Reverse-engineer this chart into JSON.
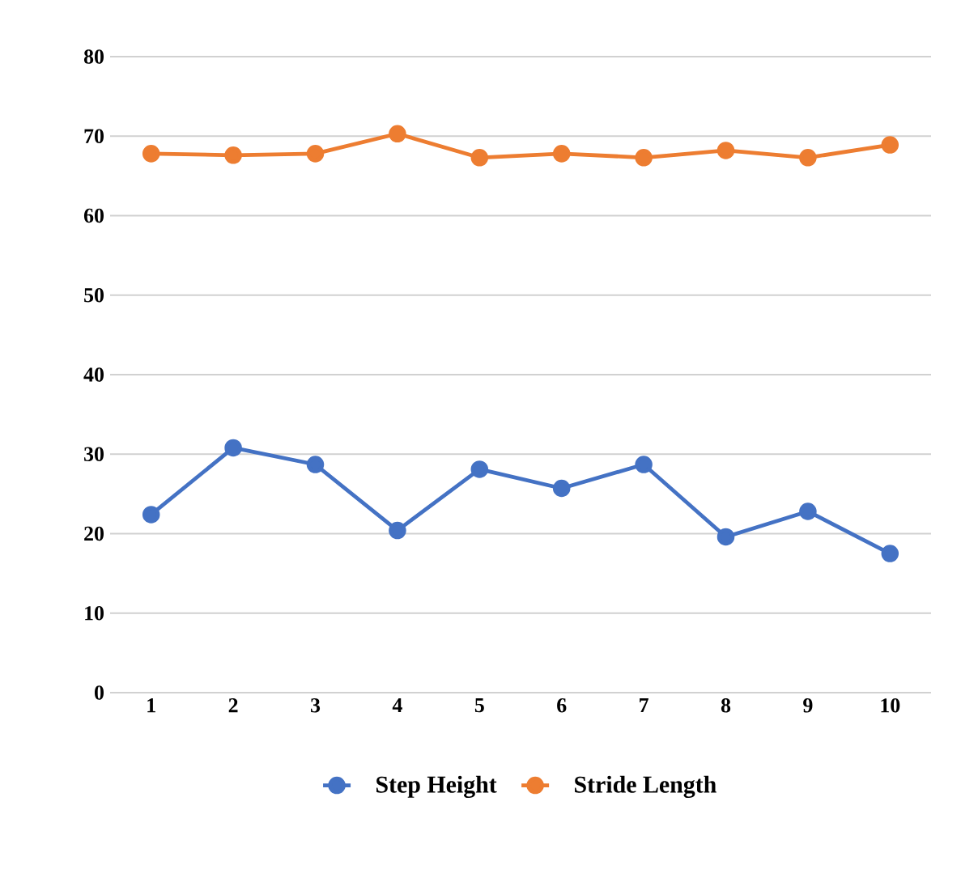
{
  "chart_data": {
    "type": "line",
    "categories": [
      "1",
      "2",
      "3",
      "4",
      "5",
      "6",
      "7",
      "8",
      "9",
      "10"
    ],
    "series": [
      {
        "name": "Step Height",
        "color": "#4472c4",
        "values": [
          22.4,
          30.8,
          28.7,
          20.4,
          28.1,
          25.7,
          28.7,
          19.6,
          22.8,
          17.5
        ]
      },
      {
        "name": "Stride Length",
        "color": "#ed7d31",
        "values": [
          67.8,
          67.6,
          67.8,
          70.3,
          67.3,
          67.8,
          67.3,
          68.2,
          67.3,
          68.9
        ]
      }
    ],
    "ylim": [
      0,
      80
    ],
    "yticks": [
      0,
      10,
      20,
      30,
      40,
      50,
      60,
      70,
      80
    ],
    "grid": "y",
    "legend": "bottom",
    "marker": "circle",
    "line_style": "solid"
  }
}
